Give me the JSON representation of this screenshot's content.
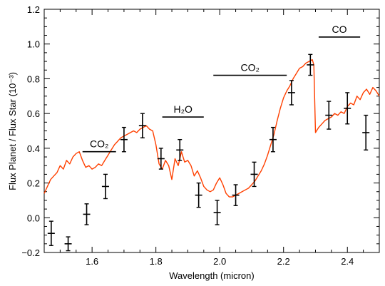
{
  "chart_data": {
    "type": "line",
    "title": "",
    "xlabel": "Wavelength (micron)",
    "ylabel": "Flux Planet / Flux Star (10⁻³)",
    "xlim": [
      1.45,
      2.5
    ],
    "ylim": [
      -0.2,
      1.2
    ],
    "xticks": [
      1.6,
      1.8,
      2.0,
      2.2,
      2.4
    ],
    "xtick_labels": [
      "1.6",
      "1.8",
      "2.0",
      "2.2",
      "2.4"
    ],
    "yticks": [
      -0.2,
      0.0,
      0.2,
      0.4,
      0.6,
      0.8,
      1.0,
      1.2
    ],
    "ytick_labels": [
      "−0.2",
      "0.0",
      "0.2",
      "0.4",
      "0.6",
      "0.8",
      "1.0",
      "1.2"
    ],
    "grid": false,
    "model_color": "#ff4000",
    "data_color": "#000000",
    "series": [
      {
        "kind": "model_line",
        "x": [
          1.45,
          1.46,
          1.47,
          1.48,
          1.49,
          1.5,
          1.51,
          1.52,
          1.53,
          1.54,
          1.55,
          1.56,
          1.57,
          1.58,
          1.59,
          1.6,
          1.61,
          1.62,
          1.63,
          1.64,
          1.65,
          1.66,
          1.67,
          1.68,
          1.69,
          1.7,
          1.71,
          1.72,
          1.73,
          1.74,
          1.75,
          1.76,
          1.77,
          1.78,
          1.79,
          1.8,
          1.81,
          1.82,
          1.83,
          1.84,
          1.85,
          1.86,
          1.87,
          1.88,
          1.89,
          1.9,
          1.91,
          1.92,
          1.93,
          1.94,
          1.95,
          1.96,
          1.97,
          1.98,
          1.99,
          2.0,
          2.01,
          2.02,
          2.03,
          2.04,
          2.05,
          2.06,
          2.07,
          2.08,
          2.09,
          2.1,
          2.11,
          2.12,
          2.13,
          2.14,
          2.15,
          2.16,
          2.17,
          2.18,
          2.19,
          2.2,
          2.21,
          2.22,
          2.23,
          2.24,
          2.25,
          2.26,
          2.27,
          2.28,
          2.29,
          2.295,
          2.3,
          2.31,
          2.32,
          2.33,
          2.34,
          2.35,
          2.36,
          2.37,
          2.38,
          2.39,
          2.4,
          2.41,
          2.42,
          2.43,
          2.44,
          2.45,
          2.46,
          2.47,
          2.48,
          2.49,
          2.5
        ],
        "y": [
          0.14,
          0.18,
          0.22,
          0.24,
          0.26,
          0.3,
          0.28,
          0.33,
          0.31,
          0.35,
          0.37,
          0.38,
          0.33,
          0.29,
          0.3,
          0.28,
          0.29,
          0.31,
          0.3,
          0.33,
          0.36,
          0.39,
          0.42,
          0.44,
          0.46,
          0.47,
          0.48,
          0.49,
          0.5,
          0.49,
          0.51,
          0.52,
          0.53,
          0.51,
          0.5,
          0.42,
          0.31,
          0.28,
          0.33,
          0.3,
          0.22,
          0.34,
          0.3,
          0.38,
          0.32,
          0.33,
          0.3,
          0.24,
          0.27,
          0.23,
          0.18,
          0.16,
          0.15,
          0.16,
          0.2,
          0.23,
          0.19,
          0.14,
          0.12,
          0.12,
          0.13,
          0.14,
          0.15,
          0.16,
          0.17,
          0.19,
          0.21,
          0.24,
          0.27,
          0.31,
          0.36,
          0.42,
          0.48,
          0.56,
          0.63,
          0.69,
          0.73,
          0.76,
          0.8,
          0.83,
          0.86,
          0.87,
          0.89,
          0.9,
          0.91,
          0.88,
          0.49,
          0.52,
          0.54,
          0.56,
          0.57,
          0.58,
          0.6,
          0.59,
          0.61,
          0.6,
          0.64,
          0.66,
          0.65,
          0.7,
          0.68,
          0.72,
          0.74,
          0.71,
          0.75,
          0.73,
          0.7
        ]
      },
      {
        "kind": "data_points",
        "points": [
          {
            "x": 1.472,
            "y": -0.09,
            "yerr": 0.07
          },
          {
            "x": 1.525,
            "y": -0.15,
            "yerr": 0.04
          },
          {
            "x": 1.583,
            "y": 0.02,
            "yerr": 0.06
          },
          {
            "x": 1.642,
            "y": 0.18,
            "yerr": 0.07
          },
          {
            "x": 1.7,
            "y": 0.45,
            "yerr": 0.07
          },
          {
            "x": 1.758,
            "y": 0.53,
            "yerr": 0.07
          },
          {
            "x": 1.816,
            "y": 0.34,
            "yerr": 0.06
          },
          {
            "x": 1.875,
            "y": 0.39,
            "yerr": 0.06
          },
          {
            "x": 1.934,
            "y": 0.13,
            "yerr": 0.07
          },
          {
            "x": 1.992,
            "y": 0.03,
            "yerr": 0.07
          },
          {
            "x": 2.05,
            "y": 0.13,
            "yerr": 0.06
          },
          {
            "x": 2.108,
            "y": 0.25,
            "yerr": 0.07
          },
          {
            "x": 2.167,
            "y": 0.45,
            "yerr": 0.07
          },
          {
            "x": 2.225,
            "y": 0.72,
            "yerr": 0.07
          },
          {
            "x": 2.284,
            "y": 0.88,
            "yerr": 0.06
          },
          {
            "x": 2.342,
            "y": 0.59,
            "yerr": 0.08
          },
          {
            "x": 2.4,
            "y": 0.63,
            "yerr": 0.09
          },
          {
            "x": 2.458,
            "y": 0.49,
            "yerr": 0.1
          }
        ]
      }
    ],
    "annotations": [
      {
        "label": "CO₂",
        "x0": 1.57,
        "x1": 1.675,
        "y": 0.38
      },
      {
        "label": "H₂O",
        "x0": 1.82,
        "x1": 1.95,
        "y": 0.58
      },
      {
        "label": "CO₂",
        "x0": 1.98,
        "x1": 2.21,
        "y": 0.82
      },
      {
        "label": "CO",
        "x0": 2.31,
        "x1": 2.44,
        "y": 1.04
      }
    ]
  }
}
